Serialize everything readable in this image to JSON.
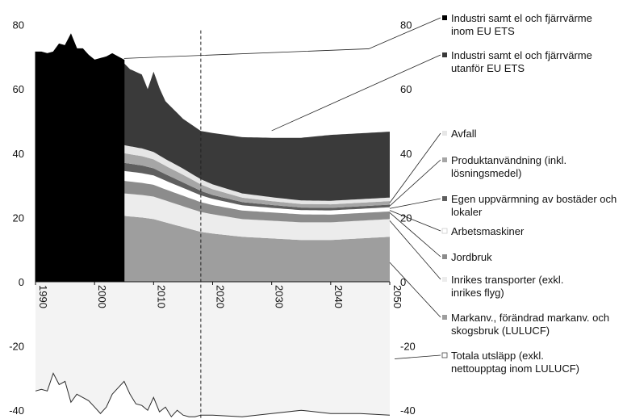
{
  "chart_data": {
    "type": "area",
    "title": "",
    "xlabel": "",
    "ylabel": "",
    "xlim": [
      1990,
      2050
    ],
    "ylim": [
      -42,
      82
    ],
    "left_ticks": [
      "80",
      "60",
      "40",
      "20",
      "0",
      "-20",
      "-40"
    ],
    "right_ticks": [
      "80",
      "60",
      "40",
      "20",
      "0",
      "-20",
      "-40"
    ],
    "x_ticks": [
      "1990",
      "2000",
      "2010",
      "2020",
      "2030",
      "2040",
      "2050"
    ],
    "projection_start": 2018,
    "grid": false,
    "legend_position": "right",
    "historical_series": {
      "name": "Industri samt el och fjärrvärme inom EU ETS",
      "x": [
        1990,
        1991,
        1992,
        1993,
        1994,
        1995,
        1996,
        1997,
        1998,
        1999,
        2000,
        2001,
        2002,
        2003,
        2004,
        2005
      ],
      "values": [
        71.5,
        71.5,
        71,
        71.5,
        74,
        73.5,
        77,
        72.5,
        72.5,
        70.5,
        69,
        69.5,
        70,
        71,
        70,
        69
      ]
    },
    "series": [
      {
        "name": "Markanv., förändrad markanv. och skogsbruk (LULUCF)",
        "color": "#9e9e9e",
        "x": [
          2005,
          2008,
          2010,
          2012,
          2015,
          2018,
          2020,
          2025,
          2030,
          2035,
          2040,
          2045,
          2050
        ],
        "values": [
          20.5,
          20,
          19.5,
          18.5,
          17,
          15.5,
          15,
          14,
          13.5,
          13,
          13,
          13.5,
          14
        ]
      },
      {
        "name": "Inrikes transporter (exkl. inrikes flyg)",
        "color": "#ececec",
        "x": [
          2005,
          2008,
          2010,
          2012,
          2015,
          2018,
          2020,
          2025,
          2030,
          2035,
          2040,
          2045,
          2050
        ],
        "values": [
          7,
          7,
          7,
          6.8,
          6.5,
          6.2,
          6,
          5.5,
          5.5,
          5.5,
          5.5,
          5.5,
          5.5
        ]
      },
      {
        "name": "Jordbruk",
        "color": "#8c8c8c",
        "x": [
          2005,
          2008,
          2010,
          2012,
          2015,
          2018,
          2020,
          2025,
          2030,
          2035,
          2040,
          2045,
          2050
        ],
        "values": [
          4,
          3.9,
          3.8,
          3.6,
          3.4,
          3.2,
          3,
          2.8,
          2.7,
          2.6,
          2.5,
          2.5,
          2.5
        ]
      },
      {
        "name": "Arbetsmaskiner",
        "color": "#ffffff",
        "x": [
          2005,
          2008,
          2010,
          2012,
          2015,
          2018,
          2020,
          2025,
          2030,
          2035,
          2040,
          2045,
          2050
        ],
        "values": [
          3,
          2.9,
          2.8,
          2.6,
          2.3,
          2,
          1.8,
          1.5,
          1.3,
          1.2,
          1.2,
          1.2,
          1.2
        ]
      },
      {
        "name": "Egen uppvärmning av bostäder och lokaler",
        "color": "#5f5f5f",
        "x": [
          2005,
          2008,
          2010,
          2012,
          2015,
          2018,
          2020,
          2025,
          2030,
          2035,
          2040,
          2045,
          2050
        ],
        "values": [
          2.5,
          2.4,
          2.2,
          2,
          1.7,
          1.4,
          1.2,
          1,
          0.9,
          0.8,
          0.8,
          0.8,
          0.8
        ]
      },
      {
        "name": "Produktanvändning (inkl. lösningsmedel)",
        "color": "#a6a6a6",
        "x": [
          2005,
          2008,
          2010,
          2012,
          2015,
          2018,
          2020,
          2025,
          2030,
          2035,
          2040,
          2045,
          2050
        ],
        "values": [
          3,
          2.9,
          2.8,
          2.6,
          2.4,
          2,
          1.8,
          1.4,
          1.2,
          1.1,
          1.1,
          1.1,
          1.1
        ]
      },
      {
        "name": "Avfall",
        "color": "#e6e6e6",
        "x": [
          2005,
          2008,
          2010,
          2012,
          2015,
          2018,
          2020,
          2025,
          2030,
          2035,
          2040,
          2045,
          2050
        ],
        "values": [
          2.5,
          2.4,
          2.3,
          2.1,
          1.9,
          1.6,
          1.5,
          1.3,
          1.2,
          1.1,
          1.1,
          1.1,
          1.1
        ]
      },
      {
        "name": "Industri samt el och fjärrvärme utanför EU ETS",
        "color": "#3a3a3a",
        "x": [
          2005,
          2006,
          2008,
          2009,
          2010,
          2011,
          2012,
          2015,
          2018,
          2020,
          2025,
          2030,
          2035,
          2040,
          2045,
          2050
        ],
        "values": [
          25.5,
          24,
          23,
          19,
          25,
          21,
          18,
          15.5,
          15,
          16,
          17.5,
          18.5,
          19.5,
          20.5,
          20.5,
          20.5
        ]
      }
    ],
    "total_emissions": {
      "name": "Totala utsläpp (exkl. nettoupptag inom LULUCF)",
      "x": [
        1990,
        1991,
        1992,
        1993,
        1994,
        1995,
        1996,
        1997,
        1998,
        1999,
        2000,
        2001,
        2002,
        2003,
        2004,
        2005,
        2006,
        2007,
        2008,
        2009,
        2010,
        2011,
        2012,
        2013,
        2014,
        2015,
        2016,
        2017,
        2018,
        2020,
        2025,
        2030,
        2035,
        2040,
        2045,
        2050
      ],
      "values": [
        -34,
        -33.5,
        -34,
        -28.5,
        -32,
        -31,
        -37.5,
        -35,
        -36,
        -37,
        -39,
        -41,
        -39,
        -35,
        -33,
        -31,
        -35,
        -38,
        -38.5,
        -40,
        -36,
        -40.5,
        -39,
        -42,
        -40,
        -41.5,
        -42,
        -42,
        -41.5,
        -41.5,
        -42,
        -41,
        -40,
        -41,
        -41,
        -41.5
      ]
    },
    "legend": [
      {
        "label": "Industri samt el och fjärrvärme inom EU ETS",
        "color": "#000000"
      },
      {
        "label": "Industri samt el och fjärrvärme utanför EU ETS",
        "color": "#3a3a3a"
      },
      {
        "label": "Avfall",
        "color": "#e6e6e6"
      },
      {
        "label": "Produktanvändning (inkl. lösningsmedel)",
        "color": "#a6a6a6"
      },
      {
        "label": "Egen uppvärmning av bostäder och lokaler",
        "color": "#5f5f5f"
      },
      {
        "label": "Arbetsmaskiner",
        "color": "#ffffff"
      },
      {
        "label": "Jordbruk",
        "color": "#8c8c8c"
      },
      {
        "label": "Inrikes transporter (exkl. inrikes flyg)",
        "color": "#ececec"
      },
      {
        "label": "Markanv., förändrad markanv. och skogsbruk (LULUCF)",
        "color": "#9e9e9e"
      },
      {
        "label": "Totala utsläpp (exkl. nettoupptag inom LULUCF)",
        "color": "#ffffff"
      }
    ]
  }
}
